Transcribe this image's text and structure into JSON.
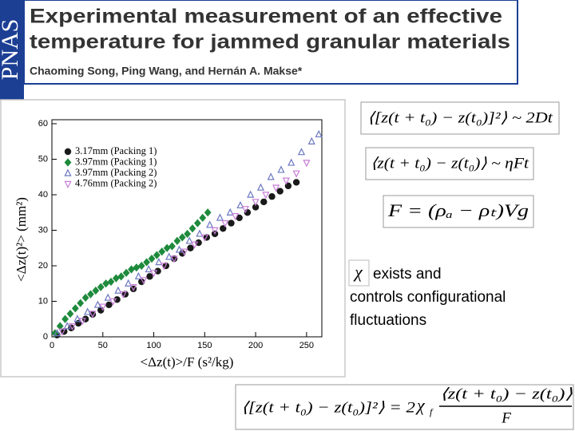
{
  "header": {
    "journal": "PNAS",
    "title_lines": [
      "Experimental measurement of an effective",
      "temperature for jammed granular materials"
    ],
    "authors": "Chaoming Song, Ping Wang, and Hernán A. Makse*"
  },
  "chart_data": {
    "type": "scatter",
    "x_label": "<Δz(t)>/F   (s²/kg)",
    "y_label": "<Δz(t)²>  (mm²)",
    "xlim": [
      0,
      265
    ],
    "ylim": [
      0,
      60
    ],
    "xticks": [
      0,
      50,
      100,
      150,
      200,
      250
    ],
    "yticks": [
      0,
      10,
      20,
      30,
      40,
      50,
      60
    ],
    "legend": "upper left",
    "series": [
      {
        "name": "3.17mm (Packing 1)",
        "color": "#1a1a1a",
        "marker": "circle",
        "filled": true,
        "x": [
          5,
          12,
          19,
          26,
          33,
          40,
          48,
          56,
          64,
          72,
          80,
          88,
          96,
          104,
          112,
          120,
          128,
          136,
          144,
          152,
          160,
          168,
          176,
          184,
          192,
          200,
          208,
          216,
          224,
          232,
          240
        ],
        "values": [
          0.5,
          1.5,
          2.5,
          3.8,
          5,
          6.3,
          7.5,
          9,
          10.5,
          12,
          13.5,
          15.5,
          17,
          18.5,
          20,
          22,
          23.5,
          25,
          26.5,
          28,
          29,
          30.5,
          32,
          33.5,
          35,
          36.5,
          38,
          39.5,
          41,
          42.5,
          43.5
        ]
      },
      {
        "name": "3.97mm (Packing 1)",
        "color": "#1e8a3c",
        "marker": "diamond",
        "filled": true,
        "x": [
          3,
          8,
          13,
          18,
          23,
          28,
          33,
          38,
          43,
          48,
          53,
          58,
          63,
          68,
          73,
          78,
          83,
          88,
          93,
          98,
          103,
          108,
          113,
          118,
          123,
          128,
          133,
          138,
          143,
          148,
          153
        ],
        "values": [
          1,
          3,
          5,
          6.5,
          8,
          9.5,
          11,
          12,
          13,
          14,
          15,
          15.5,
          16.5,
          17,
          18,
          19,
          19.5,
          20,
          21,
          22,
          23,
          24,
          25,
          25.5,
          27,
          28,
          29,
          30.5,
          32,
          33.5,
          35
        ]
      },
      {
        "name": "3.97mm (Packing 2)",
        "color": "#6b78c0",
        "marker": "triangle-up",
        "filled": false,
        "x": [
          5,
          15,
          25,
          35,
          45,
          55,
          65,
          75,
          85,
          95,
          105,
          115,
          125,
          135,
          145,
          155,
          165,
          175,
          185,
          195,
          205,
          215,
          225,
          235,
          245,
          255,
          262
        ],
        "values": [
          1,
          3,
          5,
          7,
          9,
          11,
          13,
          15,
          17,
          19,
          21,
          22.5,
          24.5,
          27,
          29,
          31.5,
          33.5,
          35,
          37,
          40,
          42,
          45,
          47,
          49,
          52,
          55,
          57
        ]
      },
      {
        "name": "4.76mm (Packing 2)",
        "color": "#c77dd6",
        "marker": "triangle-down",
        "filled": false,
        "x": [
          10,
          20,
          30,
          40,
          50,
          60,
          70,
          80,
          90,
          100,
          110,
          120,
          130,
          140,
          150,
          160,
          170,
          180,
          190,
          200,
          210,
          220,
          230,
          240,
          250
        ],
        "values": [
          1.5,
          3,
          4.5,
          6.5,
          8.5,
          10,
          12,
          14,
          16,
          18,
          20,
          22,
          24,
          26,
          28,
          30,
          32,
          34,
          36,
          38,
          40,
          42,
          44,
          46,
          49
        ]
      }
    ]
  },
  "equations": {
    "diffusion": "⟨[z(t + t₀) − z(t₀)]²⟩ ~ 2Dt",
    "drift": "⟨z(t + t₀) − z(t₀)⟩ ~ ηFt",
    "force": "F = (ρₐ − ρₜ)Vg"
  },
  "statement": {
    "symbol": "χ",
    "lines": [
      "exists and",
      "controls configurational",
      "fluctuations"
    ]
  },
  "relation": {
    "lhs": "⟨[z(t + t₀) − z(t₀)]²⟩ = 2",
    "symbol": "χ",
    "subscript": "f",
    "numerator": "⟨z(t + t₀) − z(t₀)⟩",
    "denominator": "F"
  }
}
